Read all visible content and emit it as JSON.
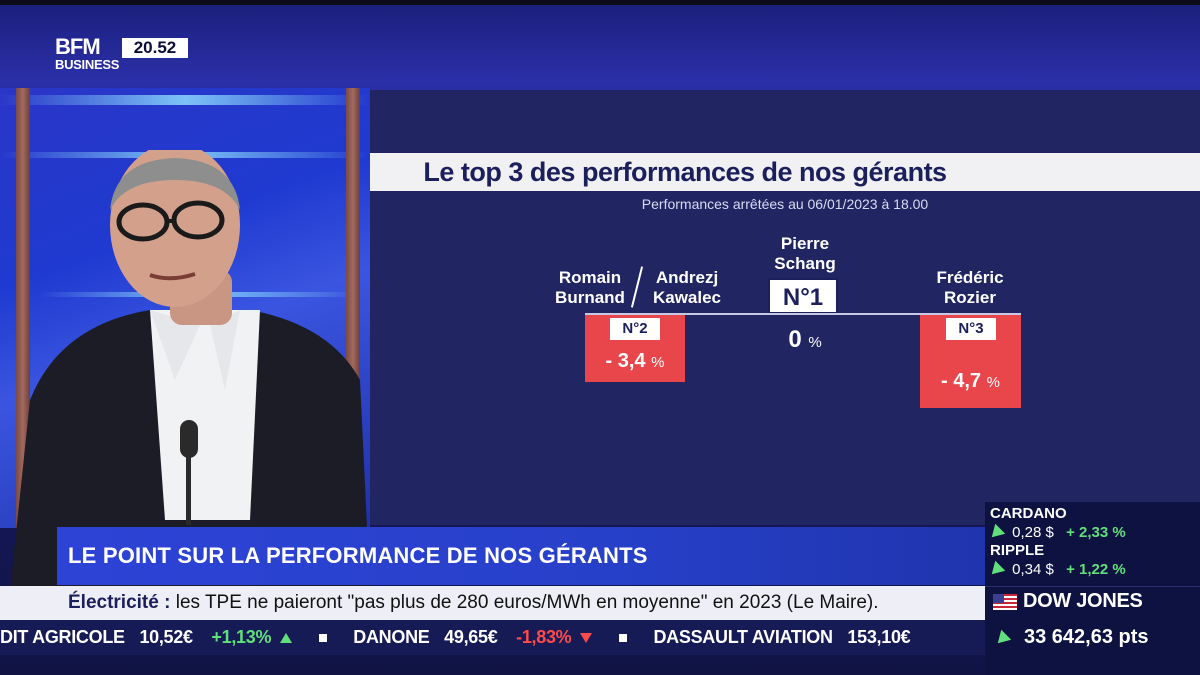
{
  "channel": {
    "logo_line1": "BFM",
    "logo_line2": "BUSINESS",
    "clock": "20.52"
  },
  "graphic": {
    "title": "Le top 3 des performances de nos gérants",
    "subtitle": "Performances arrêtées au 06/01/2023 à 18.00",
    "podium": [
      {
        "rank": "N°1",
        "name_line1": "Pierre",
        "name_line2": "Schang",
        "value": "0",
        "unit": "%",
        "bar_color": "none"
      },
      {
        "rank": "N°2",
        "name_a_line1": "Romain",
        "name_a_line2": "Burnand",
        "name_b_line1": "Andrezj",
        "name_b_line2": "Kawalec",
        "value": "- 3,4",
        "unit": "%",
        "bar_color": "#e8464b"
      },
      {
        "rank": "N°3",
        "name_line1": "Frédéric",
        "name_line2": "Rozier",
        "value": "- 4,7",
        "unit": "%",
        "bar_color": "#e8464b"
      }
    ]
  },
  "headline": "LE POINT SUR LA PERFORMANCE DE NOS GÉRANTS",
  "news_ticker": {
    "topic": "Électricité :",
    "text": "les TPE ne paieront \"pas plus de 280 euros/MWh en moyenne\" en 2023 (Le Maire)."
  },
  "stock_ticker": [
    {
      "name": "DIT AGRICOLE",
      "price": "10,52€",
      "change": "+1,13%",
      "direction": "up"
    },
    {
      "name": "DANONE",
      "price": "49,65€",
      "change": "-1,83%",
      "direction": "down"
    },
    {
      "name": "DASSAULT AVIATION",
      "price": "153,10€",
      "change": "",
      "direction": "none"
    }
  ],
  "markets": {
    "crypto": [
      {
        "name": "CARDANO",
        "price": "0,28 $",
        "change": "+ 2,33 %"
      },
      {
        "name": "RIPPLE",
        "price": "0,34 $",
        "change": "+ 1,22 %"
      }
    ],
    "index": {
      "name": "DOW JONES",
      "value": "33 642,63 pts"
    }
  },
  "colors": {
    "panel": "#212562",
    "accent_red": "#e8464b",
    "headline_blue": "#2d43d6",
    "up_green": "#5fe07a",
    "down_red": "#ff4a4a"
  }
}
